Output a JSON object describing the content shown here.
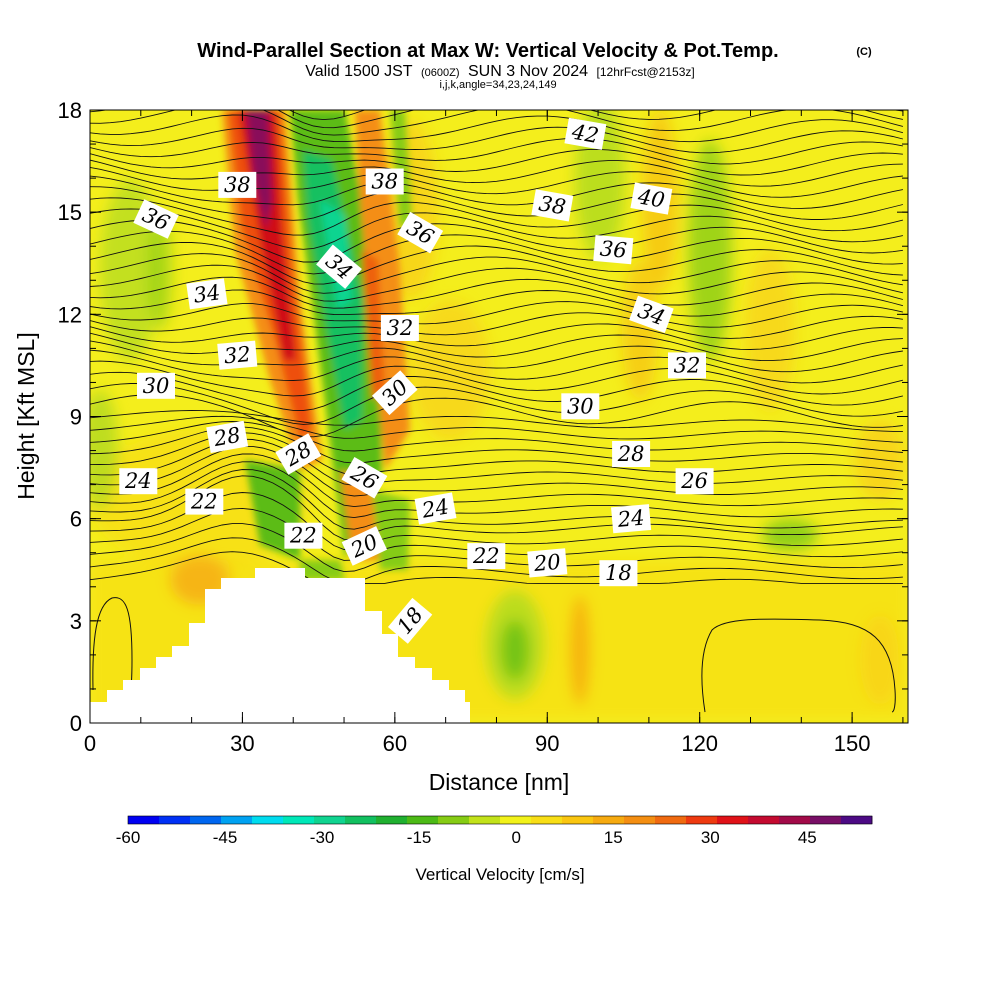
{
  "chart_data": {
    "type": "heatmap",
    "title": "Wind-Parallel Section at Max W: Vertical Velocity & Pot.Temp.",
    "copyright": "(C)",
    "subtitle_valid": "Valid 1500 JST",
    "subtitle_utc": "(0600Z)",
    "subtitle_date": "SUN 3 Nov 2024",
    "subtitle_fcst": "[12hrFcst@2153z]",
    "subtitle_index": "i,j,k,angle=34,23,24,149",
    "xlabel": "Distance [nm]",
    "ylabel": "Height [Kft MSL]",
    "xlim": [
      0,
      161
    ],
    "ylim": [
      0,
      18
    ],
    "xticks": [
      "0",
      "30",
      "60",
      "90",
      "120",
      "150"
    ],
    "yticks": [
      "0",
      "3",
      "6",
      "9",
      "12",
      "15",
      "18"
    ],
    "colorbar": {
      "label": "Vertical Velocity [cm/s]",
      "ticks": [
        "-60",
        "-45",
        "-30",
        "-15",
        "0",
        "15",
        "30",
        "45"
      ],
      "min": -60,
      "max": 55,
      "step": 5,
      "colors": [
        "#0000f2",
        "#0030f5",
        "#0066f0",
        "#00a2f2",
        "#00dcef",
        "#00e8b8",
        "#10d490",
        "#12c060",
        "#20b030",
        "#4cba16",
        "#86cc14",
        "#c2e21a",
        "#f2f21a",
        "#f8de16",
        "#fac610",
        "#f6aa10",
        "#f48e12",
        "#f06a10",
        "#ee3a10",
        "#e01218",
        "#c40a30",
        "#a20a48",
        "#780e66",
        "#4c0a84"
      ]
    },
    "theta_labels": [
      {
        "text": "38",
        "x": 29,
        "y": 15.8,
        "rot": 0
      },
      {
        "text": "38",
        "x": 58,
        "y": 15.9,
        "rot": 0
      },
      {
        "text": "36",
        "x": 13,
        "y": 14.8,
        "rot": 25
      },
      {
        "text": "36",
        "x": 65,
        "y": 14.4,
        "rot": 30
      },
      {
        "text": "34",
        "x": 23,
        "y": 12.6,
        "rot": -8
      },
      {
        "text": "34",
        "x": 49,
        "y": 13.4,
        "rot": 40
      },
      {
        "text": "32",
        "x": 29,
        "y": 10.8,
        "rot": -5
      },
      {
        "text": "32",
        "x": 61,
        "y": 11.6,
        "rot": 0
      },
      {
        "text": "30",
        "x": 13,
        "y": 9.9,
        "rot": 0
      },
      {
        "text": "30",
        "x": 60,
        "y": 9.7,
        "rot": -42
      },
      {
        "text": "28",
        "x": 27,
        "y": 8.4,
        "rot": -10
      },
      {
        "text": "28",
        "x": 41,
        "y": 7.9,
        "rot": -30
      },
      {
        "text": "24",
        "x": 9.5,
        "y": 7.1,
        "rot": 0
      },
      {
        "text": "26",
        "x": 54,
        "y": 7.2,
        "rot": 30
      },
      {
        "text": "22",
        "x": 22.5,
        "y": 6.5,
        "rot": 0
      },
      {
        "text": "24",
        "x": 68,
        "y": 6.3,
        "rot": -10
      },
      {
        "text": "22",
        "x": 42,
        "y": 5.5,
        "rot": 0
      },
      {
        "text": "20",
        "x": 54,
        "y": 5.2,
        "rot": -25
      },
      {
        "text": "18",
        "x": 63,
        "y": 3.0,
        "rot": -50
      },
      {
        "text": "22",
        "x": 78,
        "y": 4.9,
        "rot": 0
      },
      {
        "text": "20",
        "x": 90,
        "y": 4.7,
        "rot": -5
      },
      {
        "text": "18",
        "x": 104,
        "y": 4.4,
        "rot": 0
      },
      {
        "text": "42",
        "x": 97.5,
        "y": 17.3,
        "rot": 10
      },
      {
        "text": "40",
        "x": 110.5,
        "y": 15.4,
        "rot": 10
      },
      {
        "text": "38",
        "x": 91,
        "y": 15.2,
        "rot": 10
      },
      {
        "text": "36",
        "x": 103,
        "y": 13.9,
        "rot": 5
      },
      {
        "text": "34",
        "x": 110.5,
        "y": 12.0,
        "rot": 20
      },
      {
        "text": "32",
        "x": 117.5,
        "y": 10.5,
        "rot": 0
      },
      {
        "text": "30",
        "x": 96.5,
        "y": 9.3,
        "rot": 0
      },
      {
        "text": "28",
        "x": 106.5,
        "y": 7.9,
        "rot": 0
      },
      {
        "text": "26",
        "x": 119,
        "y": 7.1,
        "rot": 0
      },
      {
        "text": "24",
        "x": 106.5,
        "y": 6.0,
        "rot": -5
      }
    ]
  }
}
